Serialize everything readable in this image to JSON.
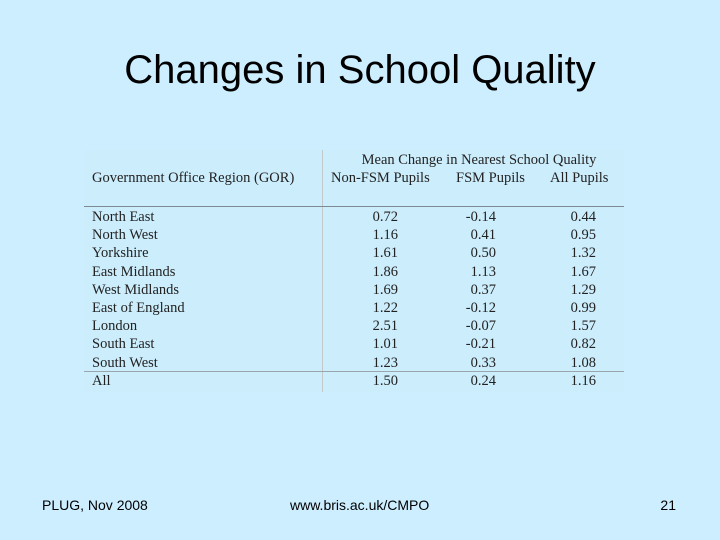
{
  "slide": {
    "title": "Changes in School Quality"
  },
  "table": {
    "group_header": "Mean Change in Nearest School Quality",
    "columns": {
      "region": "Government Office Region (GOR)",
      "non_fsm": "Non-FSM Pupils",
      "fsm": "FSM Pupils",
      "all": "All Pupils"
    },
    "rows": [
      {
        "region": "North East",
        "non_fsm": "0.72",
        "fsm": "-0.14",
        "all": "0.44"
      },
      {
        "region": "North West",
        "non_fsm": "1.16",
        "fsm": "0.41",
        "all": "0.95"
      },
      {
        "region": "Yorkshire",
        "non_fsm": "1.61",
        "fsm": "0.50",
        "all": "1.32"
      },
      {
        "region": "East Midlands",
        "non_fsm": "1.86",
        "fsm": "1.13",
        "all": "1.67"
      },
      {
        "region": "West Midlands",
        "non_fsm": "1.69",
        "fsm": "0.37",
        "all": "1.29"
      },
      {
        "region": "East of England",
        "non_fsm": "1.22",
        "fsm": "-0.12",
        "all": "0.99"
      },
      {
        "region": "London",
        "non_fsm": "2.51",
        "fsm": "-0.07",
        "all": "1.57"
      },
      {
        "region": "South East",
        "non_fsm": "1.01",
        "fsm": "-0.21",
        "all": "0.82"
      },
      {
        "region": "South West",
        "non_fsm": "1.23",
        "fsm": "0.33",
        "all": "1.08"
      }
    ],
    "total": {
      "region": "All",
      "non_fsm": "1.50",
      "fsm": "0.24",
      "all": "1.16"
    }
  },
  "footer": {
    "left": "PLUG, Nov 2008",
    "center": "www.bris.ac.uk/CMPO",
    "page_number": "21"
  }
}
